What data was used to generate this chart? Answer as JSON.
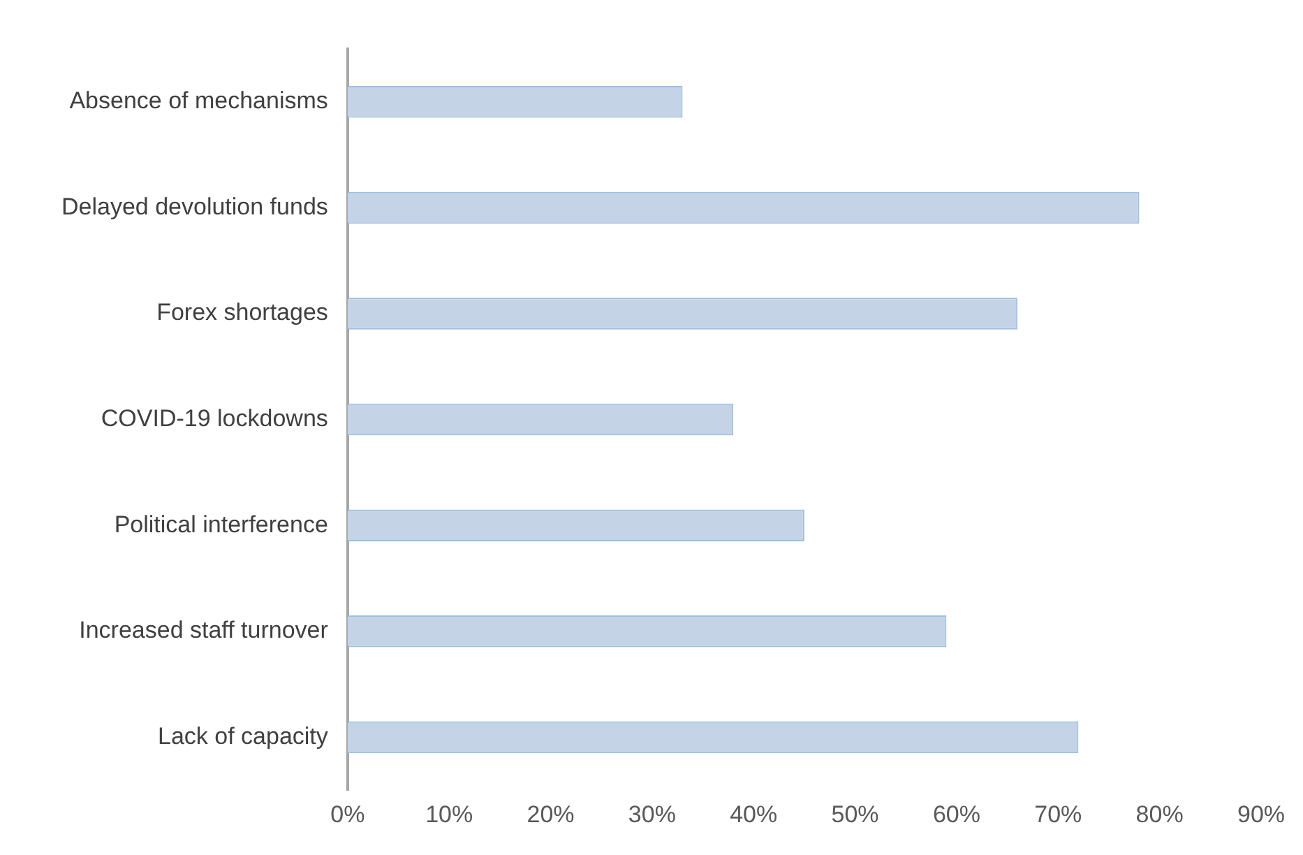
{
  "chart_data": {
    "type": "bar",
    "orientation": "horizontal",
    "categories": [
      "Absence of mechanisms",
      "Delayed devolution funds",
      "Forex shortages",
      "COVID-19 lockdowns",
      "Political interference",
      "Increased staff turnover",
      "Lack of capacity"
    ],
    "values": [
      33,
      78,
      66,
      38,
      45,
      59,
      72
    ],
    "color": "#c4d4e6",
    "xlim": [
      0,
      90
    ],
    "xticks": [
      {
        "value": 0,
        "label": "0%"
      },
      {
        "value": 10,
        "label": "10%"
      },
      {
        "value": 20,
        "label": "20%"
      },
      {
        "value": 30,
        "label": "30%"
      },
      {
        "value": 40,
        "label": "40%"
      },
      {
        "value": 50,
        "label": "50%"
      },
      {
        "value": 60,
        "label": "60%"
      },
      {
        "value": 70,
        "label": "70%"
      },
      {
        "value": 80,
        "label": "80%"
      },
      {
        "value": 90,
        "label": "90%"
      }
    ],
    "grid": false,
    "legend": false
  }
}
